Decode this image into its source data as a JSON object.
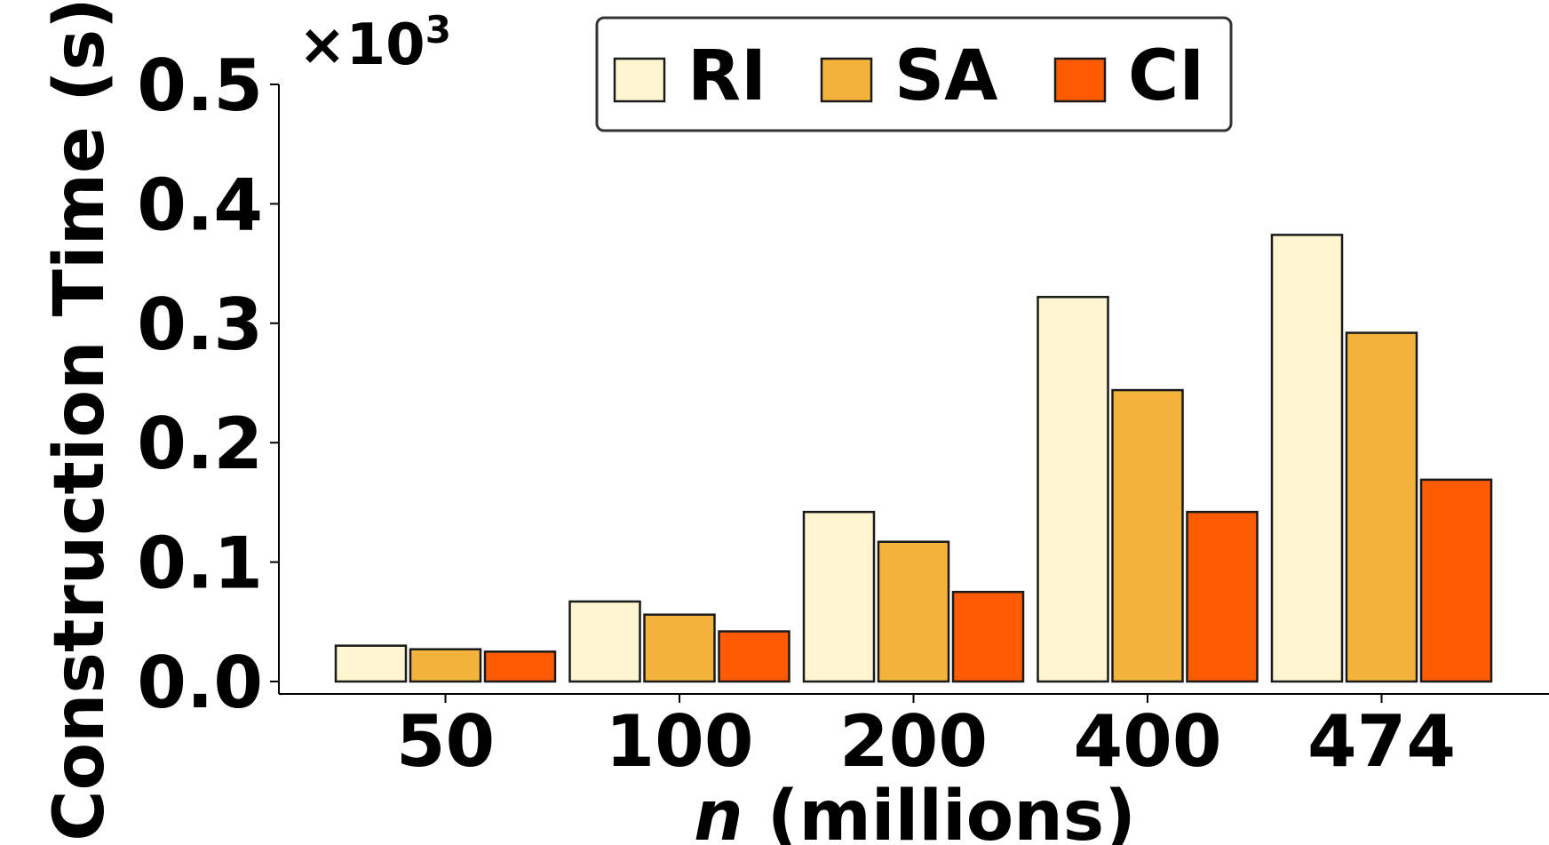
{
  "chart_data": {
    "type": "bar",
    "categories": [
      "50",
      "100",
      "200",
      "400",
      "474"
    ],
    "series": [
      {
        "name": "RI",
        "color": "#FFF5D0",
        "values": [
          0.03,
          0.067,
          0.142,
          0.322,
          0.374
        ]
      },
      {
        "name": "SA",
        "color": "#F4B43C",
        "values": [
          0.027,
          0.056,
          0.117,
          0.244,
          0.292
        ]
      },
      {
        "name": "CI",
        "color": "#FE5B02",
        "values": [
          0.025,
          0.042,
          0.075,
          0.142,
          0.169
        ]
      }
    ],
    "xlabel_italic": "n",
    "xlabel_rest": " (millions)",
    "ylabel": "Construction Time (s)",
    "multiplier_base": "×10",
    "multiplier_exp": "3",
    "ylim": [
      0,
      0.5
    ],
    "yticks": [
      "0.0",
      "0.1",
      "0.2",
      "0.3",
      "0.4",
      "0.5"
    ],
    "legend": {
      "position": "top-center",
      "entries": [
        "RI",
        "SA",
        "CI"
      ]
    },
    "grid": false
  }
}
